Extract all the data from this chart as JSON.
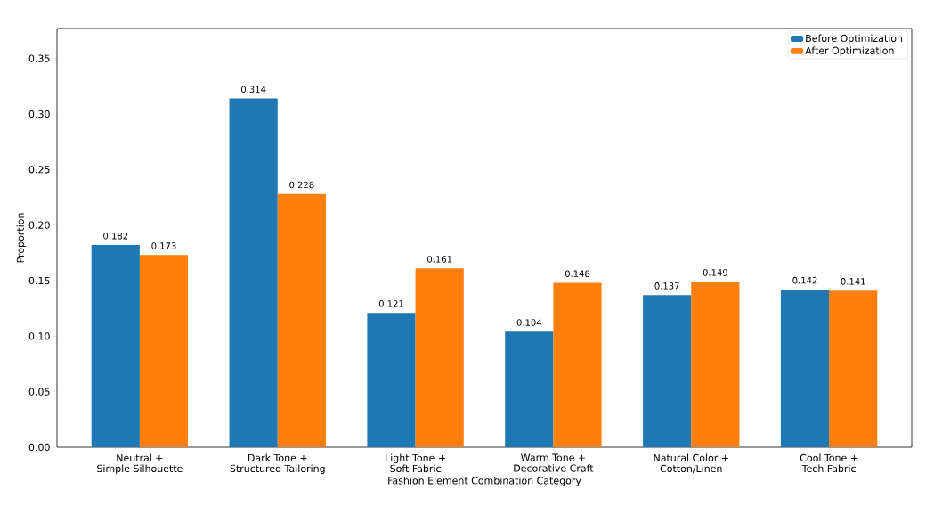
{
  "chart_data": {
    "type": "bar",
    "xlabel": "Fashion Element Combination Category",
    "ylabel": "Proportion",
    "categories": [
      "Neutral +\nSimple Silhouette",
      "Dark Tone +\nStructured Tailoring",
      "Light Tone +\nSoft Fabric",
      "Warm Tone +\nDecorative Craft",
      "Natural Color +\nCotton/Linen",
      "Cool Tone +\nTech Fabric"
    ],
    "series": [
      {
        "name": "Before Optimization",
        "color": "#1f77b4",
        "values": [
          0.182,
          0.314,
          0.121,
          0.104,
          0.137,
          0.142
        ]
      },
      {
        "name": "After Optimization",
        "color": "#ff7f0e",
        "values": [
          0.173,
          0.228,
          0.161,
          0.148,
          0.149,
          0.141
        ]
      }
    ],
    "ylim": [
      0,
      0.377
    ],
    "yticks": [
      {
        "value": 0,
        "label": "0.00"
      },
      {
        "value": 0.05,
        "label": "0.05"
      },
      {
        "value": 0.1,
        "label": "0.10"
      },
      {
        "value": 0.15,
        "label": "0.15"
      },
      {
        "value": 0.2,
        "label": "0.20"
      },
      {
        "value": 0.25,
        "label": "0.25"
      },
      {
        "value": 0.3,
        "label": "0.30"
      },
      {
        "value": 0.35,
        "label": "0.35"
      }
    ],
    "data_labels": true,
    "legend": "top right",
    "grid": false
  }
}
